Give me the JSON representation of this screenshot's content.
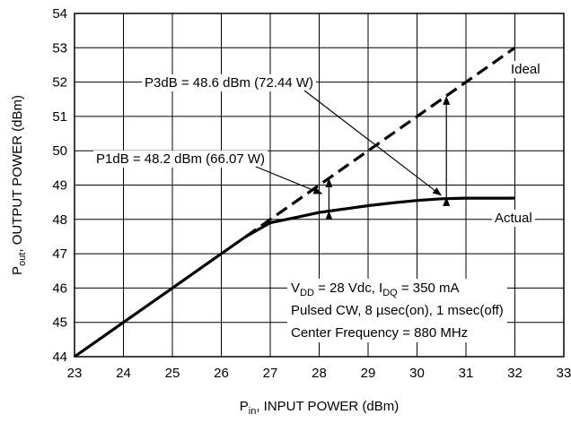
{
  "chart_data": {
    "type": "line",
    "xlabel": {
      "main": "P",
      "sub": "in",
      "rest": ", INPUT POWER (dBm)"
    },
    "ylabel": {
      "main": "P",
      "sub": "out",
      "rest": ", OUTPUT POWER (dBm)"
    },
    "xlim": [
      23,
      33
    ],
    "ylim": [
      44,
      54
    ],
    "x_ticks": [
      "23",
      "24",
      "25",
      "26",
      "27",
      "28",
      "29",
      "30",
      "31",
      "32",
      "33"
    ],
    "y_ticks": [
      "44",
      "45",
      "46",
      "47",
      "48",
      "49",
      "50",
      "51",
      "52",
      "53",
      "54"
    ],
    "grid": true,
    "series": [
      {
        "name": "Actual",
        "style": "solid",
        "x": [
          23,
          24,
          25,
          26,
          26.5,
          27,
          27.5,
          28,
          28.5,
          29,
          29.5,
          30,
          30.5,
          31,
          31.5,
          32
        ],
        "y": [
          44,
          45,
          46,
          47,
          47.5,
          47.9,
          48.05,
          48.2,
          48.3,
          48.4,
          48.48,
          48.55,
          48.6,
          48.62,
          48.62,
          48.62
        ]
      },
      {
        "name": "Ideal",
        "style": "dashed",
        "x": [
          26.5,
          32
        ],
        "y": [
          47.5,
          53
        ]
      }
    ],
    "annotations": {
      "p3db": "P3dB = 48.6 dBm (72.44 W)",
      "p1db": "P1dB = 48.2 dBm (66.07 W)",
      "cond_vdd": {
        "p1": "V",
        "s1": "DD",
        "p2": " = 28 Vdc, I",
        "s2": "DQ",
        "p3": " = 350 mA"
      },
      "cond_pulse": "Pulsed CW, 8 µsec(on), 1 msec(off)",
      "cond_freq": "Center Frequency = 880 MHz"
    },
    "compression_arrows": [
      {
        "x": 28.2,
        "y_from": 48.2,
        "y_to": 49.2
      },
      {
        "x": 30.6,
        "y_from": 48.6,
        "y_to": 51.6
      }
    ]
  }
}
